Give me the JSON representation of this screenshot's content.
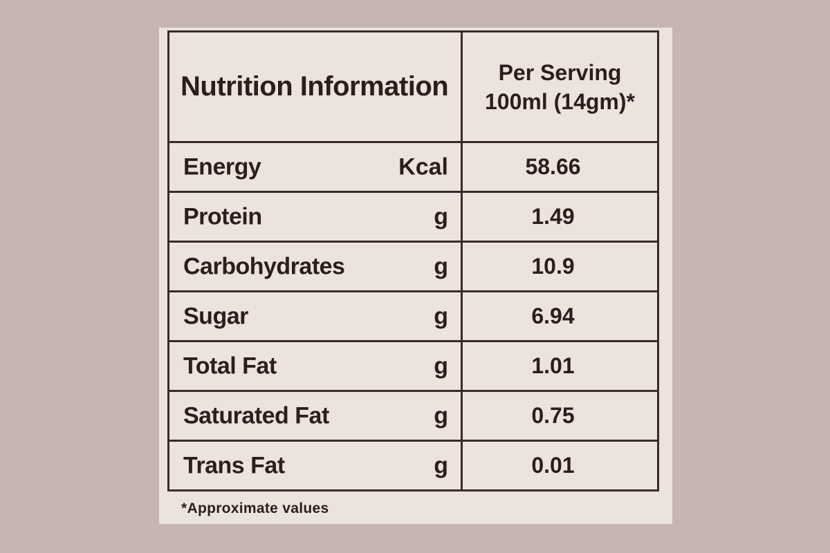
{
  "header": {
    "title": "Nutrition Information",
    "serving_line1": "Per Serving",
    "serving_line2": "100ml (14gm)*"
  },
  "rows": [
    {
      "name": "Energy",
      "unit": "Kcal",
      "value": "58.66"
    },
    {
      "name": "Protein",
      "unit": "g",
      "value": "1.49"
    },
    {
      "name": "Carbohydrates",
      "unit": "g",
      "value": "10.9"
    },
    {
      "name": "Sugar",
      "unit": "g",
      "value": "6.94"
    },
    {
      "name": "Total Fat",
      "unit": "g",
      "value": "1.01"
    },
    {
      "name": "Saturated Fat",
      "unit": "g",
      "value": "0.75"
    },
    {
      "name": "Trans Fat",
      "unit": "g",
      "value": "0.01"
    }
  ],
  "footnote": "*Approximate values",
  "colors": {
    "background": "#c6b5b1",
    "panel": "#ece3df",
    "ink": "#2b1e1c",
    "border": "#3a2a27"
  }
}
